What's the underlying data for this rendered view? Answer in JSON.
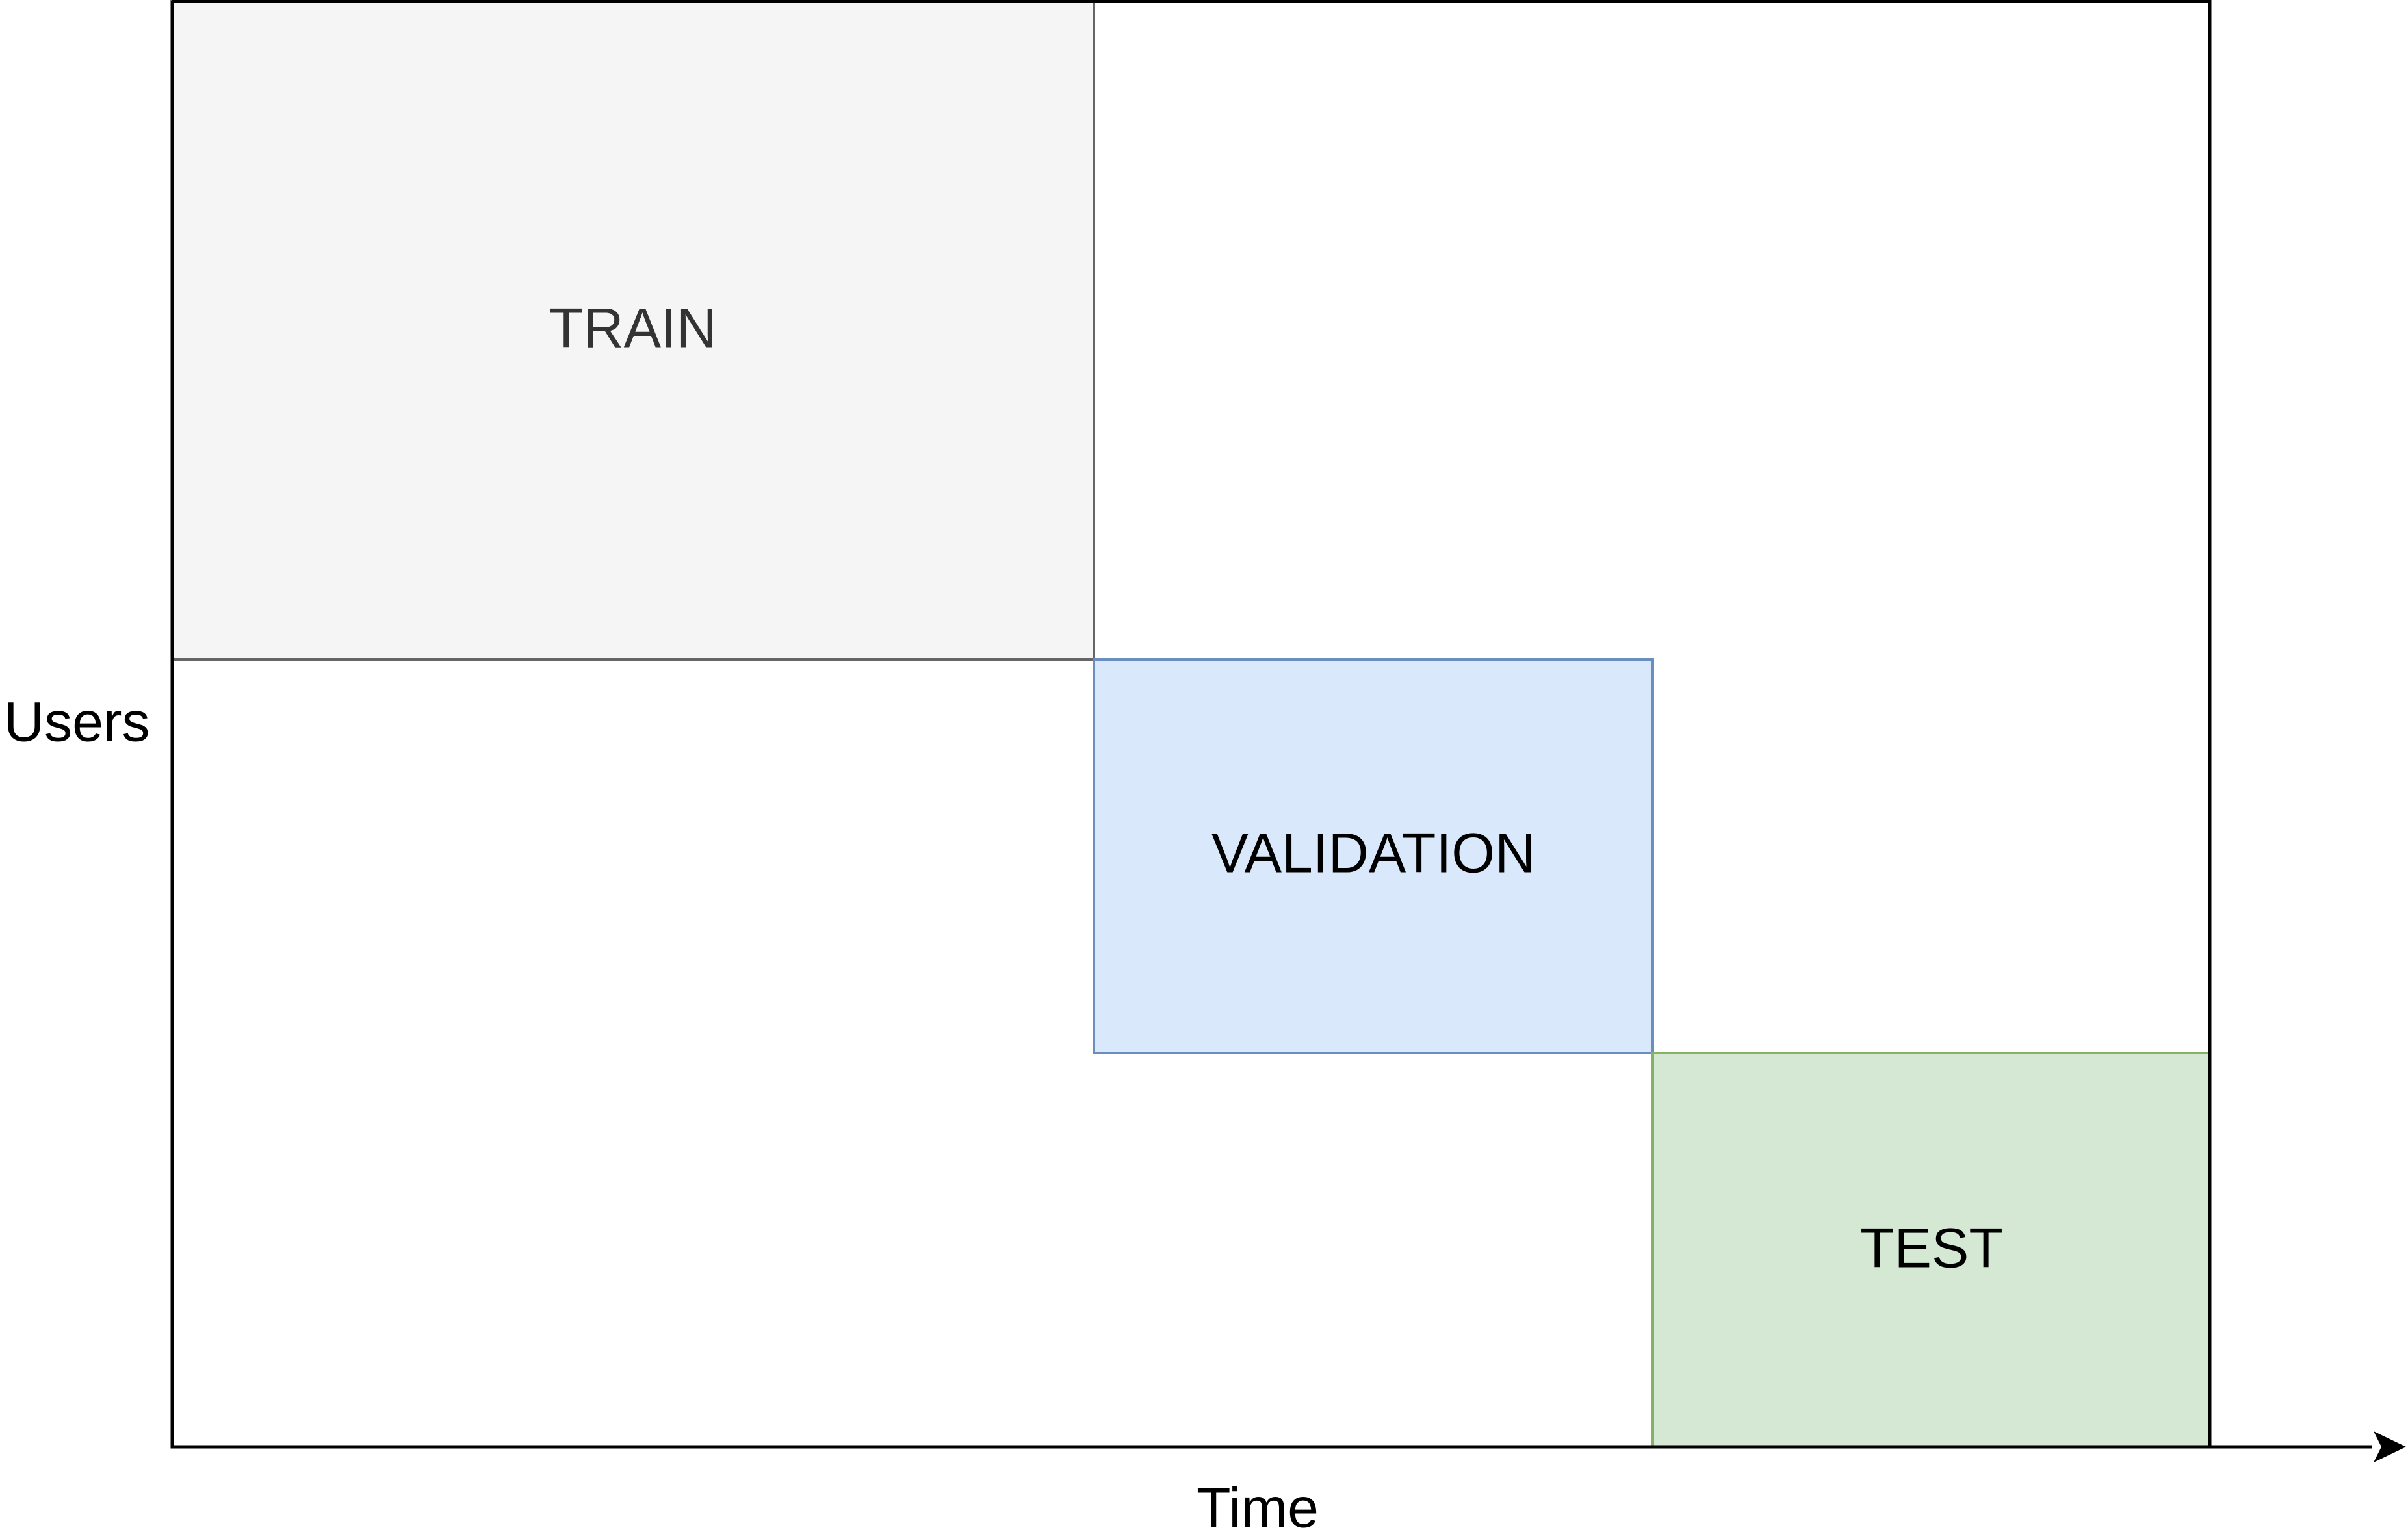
{
  "axes": {
    "x_label": "Time",
    "y_label": "Users"
  },
  "regions": {
    "train": {
      "label": "TRAIN",
      "fill": "#f5f5f5",
      "stroke": "#666666",
      "text_color": "#333333"
    },
    "validation": {
      "label": "VALIDATION",
      "fill": "#dae8fc",
      "stroke": "#6c8ebf",
      "text_color": "#000000"
    },
    "test": {
      "label": "TEST",
      "fill": "#d5e8d4",
      "stroke": "#82b366",
      "text_color": "#000000"
    }
  },
  "colors": {
    "frame": "#000000",
    "background": "#ffffff"
  }
}
